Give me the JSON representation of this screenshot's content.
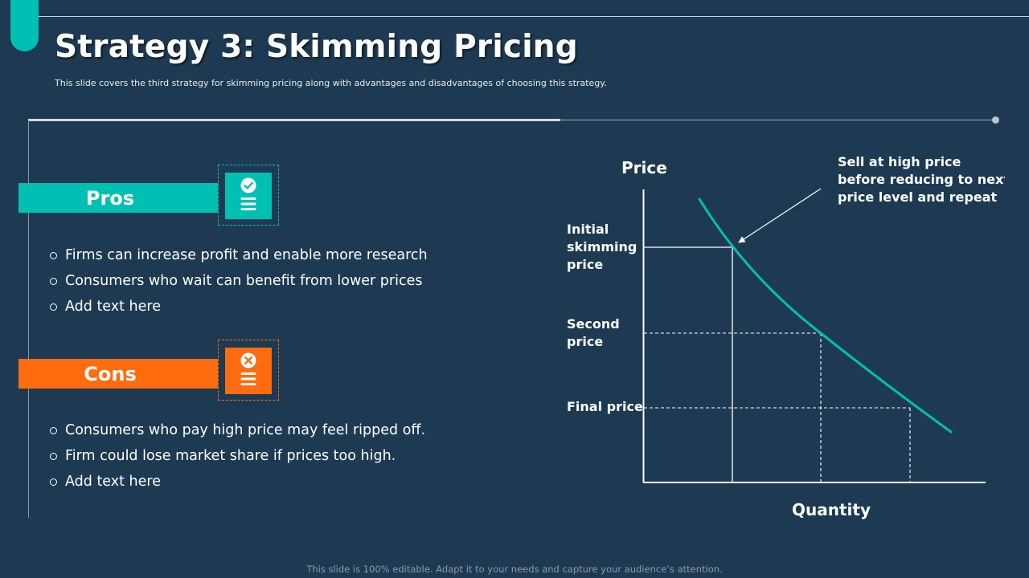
{
  "slide": {
    "title": "Strategy 3: Skimming Pricing",
    "subtitle": "This slide covers the third strategy for skimming pricing along with advantages and disadvantages of choosing this strategy.",
    "footer": "This slide is 100% editable. Adapt it to your needs and capture your audience’s attention."
  },
  "pros": {
    "label": "Pros",
    "icon": "checklist-check-icon",
    "items": [
      "Firms can increase profit and enable more research",
      "Consumers who wait can benefit from lower prices",
      "Add text here"
    ]
  },
  "cons": {
    "label": "Cons",
    "icon": "checklist-cross-icon",
    "items": [
      "Consumers who pay high price may feel ripped off.",
      "Firm could lose market share if prices too high.",
      "Add text here"
    ]
  },
  "diagram": {
    "y_axis_label": "Price",
    "x_axis_label": "Quantity",
    "levels": [
      {
        "lines": [
          "Initial",
          "skimming",
          "price"
        ]
      },
      {
        "lines": [
          "Second",
          "price"
        ]
      },
      {
        "lines": [
          "Final price"
        ]
      }
    ],
    "annotation": [
      "Sell at high price",
      "before reducing to next",
      "price level and repeat"
    ]
  },
  "colors": {
    "background": "#1e3a52",
    "accent_teal": "#00bfb3",
    "accent_orange": "#ff6b0f",
    "text": "#ffffff"
  }
}
